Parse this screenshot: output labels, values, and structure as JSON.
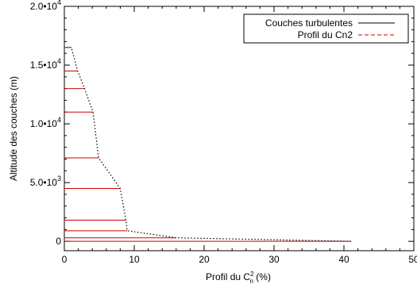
{
  "chart_data": {
    "type": "line",
    "xlabel": "Profil du C",
    "xlabel_sup": "2",
    "xlabel_sub": "n",
    "xlabel_unit": " (%)",
    "ylabel": "Altitude des couches (m)",
    "xlim": [
      0,
      50
    ],
    "ylim": [
      -800,
      20000
    ],
    "x_ticks": [
      {
        "value": 0,
        "label": "0"
      },
      {
        "value": 10,
        "label": "10"
      },
      {
        "value": 20,
        "label": "20"
      },
      {
        "value": 30,
        "label": "30"
      },
      {
        "value": 40,
        "label": "40"
      },
      {
        "value": 50,
        "label": "50"
      }
    ],
    "y_ticks": [
      {
        "value": 0,
        "mant": "0",
        "exp": ""
      },
      {
        "value": 5000,
        "mant": "5.0•10",
        "exp": "3"
      },
      {
        "value": 10000,
        "mant": "1.0•10",
        "exp": "4"
      },
      {
        "value": 15000,
        "mant": "1.5•10",
        "exp": "4"
      },
      {
        "value": 20000,
        "mant": "2.0•10",
        "exp": "4"
      }
    ],
    "grid": false,
    "legend_position": "top-right",
    "series": [
      {
        "name": "Couches turbulentes",
        "legend_color": "#000000",
        "bar_color": "#cc0000",
        "style": "solid",
        "layers": [
          {
            "altitude": 0,
            "value": 41.0
          },
          {
            "altitude": 300,
            "value": 16.0
          },
          {
            "altitude": 900,
            "value": 9.0
          },
          {
            "altitude": 1800,
            "value": 8.8
          },
          {
            "altitude": 4500,
            "value": 8.0
          },
          {
            "altitude": 7100,
            "value": 4.9
          },
          {
            "altitude": 11000,
            "value": 4.1
          },
          {
            "altitude": 13000,
            "value": 2.9
          },
          {
            "altitude": 14500,
            "value": 1.9
          },
          {
            "altitude": 16500,
            "value": 1.0
          }
        ]
      },
      {
        "name": "Profil du Cn2",
        "legend_color": "#cc0000",
        "profile_color": "#000000",
        "style": "dotted",
        "points": [
          {
            "altitude": 0,
            "value": 41.0
          },
          {
            "altitude": 300,
            "value": 16.0
          },
          {
            "altitude": 900,
            "value": 9.0
          },
          {
            "altitude": 1800,
            "value": 8.8
          },
          {
            "altitude": 4500,
            "value": 8.0
          },
          {
            "altitude": 7100,
            "value": 4.9
          },
          {
            "altitude": 11000,
            "value": 4.1
          },
          {
            "altitude": 13000,
            "value": 2.9
          },
          {
            "altitude": 14500,
            "value": 1.9
          },
          {
            "altitude": 16500,
            "value": 1.0
          }
        ]
      }
    ]
  }
}
